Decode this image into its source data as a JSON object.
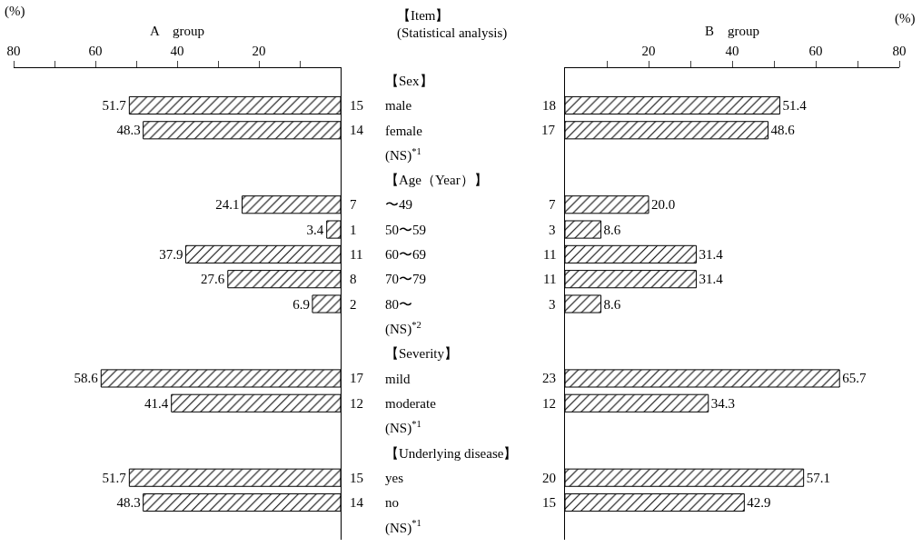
{
  "chart_data": [
    {
      "type": "bar",
      "orientation": "horizontal",
      "xlabel": "A　group",
      "ylabel": "【Item】",
      "annotations": [
        "(%)",
        "(Statistical analysis)",
        "15",
        "14",
        "7",
        "1",
        "11",
        "8",
        "2",
        "17",
        "12",
        "15",
        "14"
      ],
      "categories": [
        "【Sex】",
        "male",
        "female",
        "(NS)$^{*1}$",
        "【Age（Year）】",
        "〜49",
        "50〜59",
        "60〜69",
        "70〜79",
        "80〜",
        "(NS)$^{*2}$",
        "【Severity】",
        "mild",
        "moderate",
        "(NS)$^{*1}$",
        "【Underlying disease】",
        "yes",
        "no",
        "(NS)$^{*1}$"
      ],
      "series": [
        {
          "color": "#000000",
          "values": [
            null,
            51.7,
            48.3,
            null,
            null,
            24.1,
            3.4,
            37.9,
            27.6,
            6.9,
            null,
            null,
            58.6,
            41.4,
            null,
            null,
            51.7,
            48.3,
            null
          ],
          "value_labels": [
            null,
            "51.7",
            "48.3",
            null,
            null,
            "24.1",
            "3.4",
            "37.9",
            "27.6",
            "6.9",
            null,
            null,
            "58.6",
            "41.4",
            null,
            null,
            "51.7",
            "48.3",
            null
          ]
        }
      ],
      "xlim": [
        80,
        0
      ],
      "xticks": [
        80,
        {
          "value": 70,
          "label": null
        },
        60,
        {
          "value": 50,
          "label": null
        },
        40,
        {
          "value": 30,
          "label": null
        },
        20,
        {
          "value": 10,
          "label": null
        }
      ],
      "grid": false
    },
    {
      "type": "bar",
      "orientation": "horizontal",
      "xlabel": "B　group",
      "tick_labels": "x",
      "annotations": [
        "(%)",
        "18",
        "17",
        "7",
        "3",
        "11",
        "11",
        "3",
        "23",
        "12",
        "20",
        "15"
      ],
      "categories": [
        null,
        null,
        null,
        null,
        null,
        null,
        null,
        null,
        null,
        null,
        null,
        null,
        null,
        null,
        null,
        null,
        null,
        null,
        null
      ],
      "series": [
        {
          "color": "#000000",
          "values": [
            null,
            51.4,
            48.6,
            null,
            null,
            20.0,
            8.6,
            31.4,
            31.4,
            8.6,
            null,
            null,
            65.7,
            34.3,
            null,
            null,
            57.1,
            42.9,
            null
          ],
          "value_labels": [
            null,
            "51.4",
            "48.6",
            null,
            null,
            "20.0",
            "8.6",
            "31.4",
            "31.4",
            "8.6",
            null,
            null,
            "65.7",
            "34.3",
            null,
            null,
            "57.1",
            "42.9",
            null
          ]
        }
      ],
      "xlim": [
        0,
        80
      ],
      "xticks": [
        {
          "value": 10,
          "label": null
        },
        20,
        {
          "value": 30,
          "label": null
        },
        40,
        {
          "value": 50,
          "label": null
        },
        60,
        {
          "value": 70,
          "label": null
        },
        80
      ],
      "grid": false
    }
  ]
}
